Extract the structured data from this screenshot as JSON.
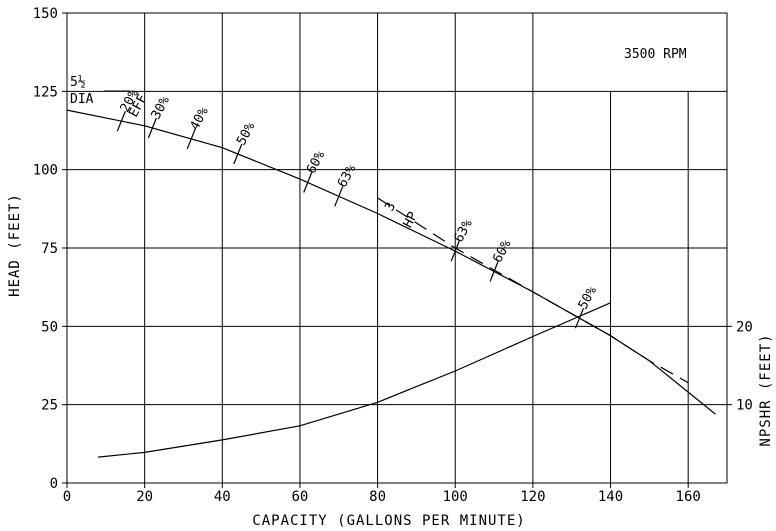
{
  "chart_data": {
    "type": "line",
    "xlabel": "CAPACITY (GALLONS PER MINUTE)",
    "ylabel": "HEAD (FEET)",
    "y2label": "NPSHR (FEET)",
    "xlim": [
      0,
      170
    ],
    "ylim": [
      0,
      150
    ],
    "x_ticks": [
      0,
      20,
      40,
      60,
      80,
      100,
      120,
      140,
      160
    ],
    "y_ticks": [
      0,
      25,
      50,
      75,
      100,
      125,
      150
    ],
    "y2_ticks": [
      10,
      20
    ],
    "grid": true,
    "legend_position": "none",
    "speed_label": "3500 RPM",
    "impeller_label_1": "5½",
    "impeller_label_2": "DIA",
    "eff_label": "EFF",
    "hp_label_num": "3",
    "hp_label_den": "HP",
    "series": [
      {
        "name": "",
        "style": "solid",
        "x": [
          0,
          20,
          40,
          60,
          80,
          100,
          120,
          140,
          150,
          160,
          167
        ],
        "y": [
          119,
          114,
          107,
          97,
          86,
          74,
          61,
          47,
          39,
          29,
          22
        ]
      },
      {
        "name": "",
        "style": "dashed",
        "x": [
          80,
          100,
          120,
          140,
          150,
          160
        ],
        "y": [
          91,
          75,
          61,
          47,
          39,
          32
        ]
      },
      {
        "name": "",
        "style": "solid",
        "axis": "y2",
        "x": [
          8,
          20,
          40,
          60,
          80,
          90,
          100,
          120,
          140
        ],
        "y": [
          3.3,
          3.9,
          5.5,
          7.3,
          10.3,
          12.3,
          14.3,
          18.7,
          23.0
        ]
      }
    ],
    "efficiency_markers": [
      {
        "x": 14,
        "label": "20%"
      },
      {
        "x": 22,
        "label": "30%"
      },
      {
        "x": 32,
        "label": "40%"
      },
      {
        "x": 44,
        "label": "50%"
      },
      {
        "x": 62,
        "label": "60%"
      },
      {
        "x": 70,
        "label": "63%"
      },
      {
        "x": 100,
        "label": "63%"
      },
      {
        "x": 110,
        "label": "60%"
      },
      {
        "x": 132,
        "label": "50%"
      }
    ]
  }
}
